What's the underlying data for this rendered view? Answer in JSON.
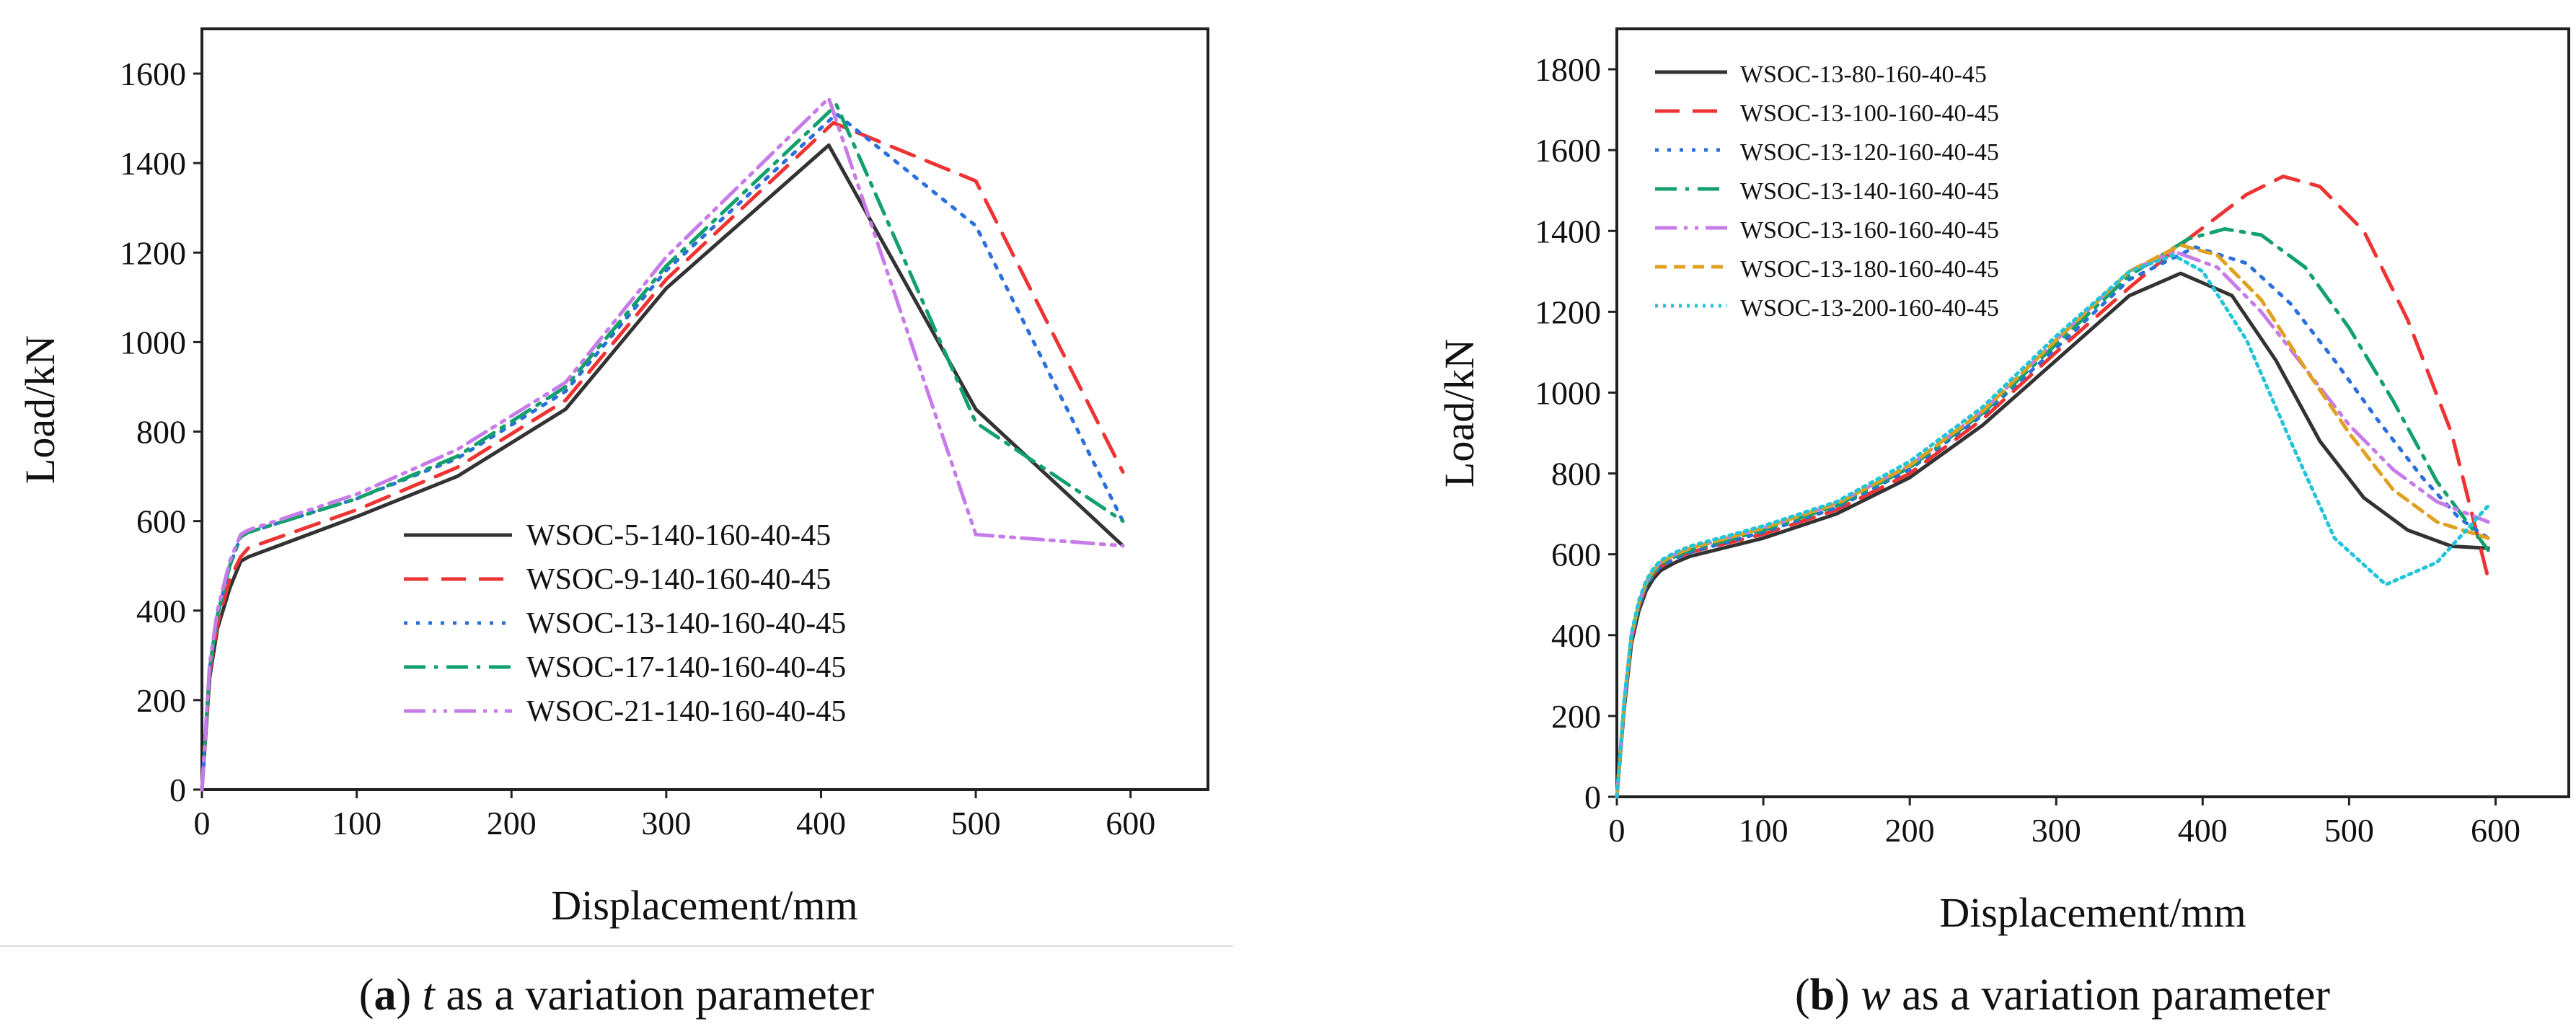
{
  "captions": {
    "a": {
      "open": "(",
      "letter": "a",
      "close": ")",
      "var": "t",
      "rest": " as a variation parameter"
    },
    "b": {
      "open": "(",
      "letter": "b",
      "close": ")",
      "var": "w",
      "rest": " as a variation parameter"
    }
  },
  "chart_data": [
    {
      "id": "a",
      "type": "line",
      "title": "",
      "xlabel": "Displacement/mm",
      "ylabel": "Load/kN",
      "xlim": [
        0,
        650
      ],
      "ylim": [
        0,
        1700
      ],
      "xticks": [
        0,
        100,
        200,
        300,
        400,
        500,
        600
      ],
      "yticks": [
        0,
        200,
        400,
        600,
        800,
        1000,
        1200,
        1400,
        1600
      ],
      "grid": false,
      "legend_position": "bottom-center",
      "series": [
        {
          "name": "WSOC-5-140-160-40-45",
          "color": "#333333",
          "dash": "solid",
          "x": [
            0,
            5,
            10,
            18,
            25,
            30,
            100,
            165,
            235,
            300,
            405,
            500,
            595
          ],
          "y": [
            0,
            250,
            360,
            450,
            510,
            520,
            610,
            700,
            850,
            1120,
            1440,
            850,
            545
          ]
        },
        {
          "name": "WSOC-9-140-160-40-45",
          "color": "#ee3333",
          "dash": "dashed",
          "x": [
            0,
            5,
            10,
            18,
            25,
            30,
            100,
            165,
            235,
            300,
            408,
            500,
            595
          ],
          "y": [
            0,
            260,
            370,
            470,
            520,
            540,
            625,
            720,
            870,
            1140,
            1490,
            1360,
            710
          ]
        },
        {
          "name": "WSOC-13-140-160-40-45",
          "color": "#2a6fdb",
          "dash": "dotted",
          "x": [
            0,
            5,
            10,
            18,
            25,
            30,
            100,
            165,
            235,
            300,
            410,
            500,
            595
          ],
          "y": [
            0,
            270,
            390,
            500,
            565,
            575,
            650,
            740,
            890,
            1160,
            1510,
            1260,
            600
          ]
        },
        {
          "name": "WSOC-17-140-160-40-45",
          "color": "#12a06c",
          "dash": "dashdot",
          "x": [
            0,
            5,
            10,
            18,
            25,
            30,
            100,
            165,
            235,
            300,
            410,
            500,
            595
          ],
          "y": [
            0,
            270,
            390,
            500,
            565,
            575,
            650,
            745,
            900,
            1170,
            1530,
            820,
            600
          ]
        },
        {
          "name": "WSOC-21-140-160-40-45",
          "color": "#c77be8",
          "dash": "dashdotdot",
          "x": [
            0,
            5,
            10,
            18,
            25,
            30,
            100,
            165,
            235,
            300,
            405,
            500,
            595
          ],
          "y": [
            0,
            280,
            400,
            510,
            570,
            580,
            660,
            760,
            910,
            1190,
            1545,
            570,
            545
          ]
        }
      ]
    },
    {
      "id": "b",
      "type": "line",
      "title": "",
      "xlabel": "Displacement/mm",
      "ylabel": "Load/kN",
      "xlim": [
        0,
        650
      ],
      "ylim": [
        0,
        1900
      ],
      "xticks": [
        0,
        100,
        200,
        300,
        400,
        500,
        600
      ],
      "yticks": [
        0,
        200,
        400,
        600,
        800,
        1000,
        1200,
        1400,
        1600,
        1800
      ],
      "grid": false,
      "legend_position": "top-left",
      "series": [
        {
          "name": "WSOC-13-80-160-40-45",
          "color": "#333333",
          "dash": "solid",
          "x": [
            0,
            5,
            10,
            15,
            20,
            25,
            30,
            40,
            50,
            100,
            150,
            200,
            250,
            300,
            350,
            385,
            420,
            450,
            480,
            510,
            540,
            570,
            595
          ],
          "y": [
            0,
            220,
            380,
            460,
            510,
            540,
            560,
            580,
            595,
            640,
            700,
            790,
            920,
            1080,
            1240,
            1295,
            1240,
            1080,
            880,
            740,
            660,
            620,
            615
          ]
        },
        {
          "name": "WSOC-13-100-160-40-45",
          "color": "#ee3333",
          "dash": "dashed",
          "x": [
            0,
            5,
            10,
            15,
            20,
            25,
            30,
            40,
            50,
            100,
            150,
            200,
            250,
            300,
            350,
            390,
            430,
            455,
            480,
            510,
            540,
            570,
            595
          ],
          "y": [
            0,
            230,
            390,
            470,
            520,
            550,
            570,
            590,
            605,
            650,
            710,
            800,
            935,
            1100,
            1260,
            1380,
            1490,
            1535,
            1510,
            1400,
            1180,
            900,
            540
          ]
        },
        {
          "name": "WSOC-13-120-160-40-45",
          "color": "#2a6fdb",
          "dash": "dotted",
          "x": [
            0,
            5,
            10,
            15,
            20,
            25,
            30,
            40,
            50,
            100,
            150,
            200,
            250,
            300,
            350,
            395,
            430,
            460,
            490,
            520,
            550,
            575,
            595
          ],
          "y": [
            0,
            230,
            390,
            470,
            520,
            550,
            570,
            590,
            605,
            655,
            715,
            810,
            945,
            1110,
            1280,
            1360,
            1320,
            1220,
            1080,
            930,
            790,
            690,
            640
          ]
        },
        {
          "name": "WSOC-13-140-160-40-45",
          "color": "#12a06c",
          "dash": "dashdot",
          "x": [
            0,
            5,
            10,
            15,
            20,
            25,
            30,
            40,
            50,
            100,
            150,
            200,
            250,
            300,
            350,
            390,
            415,
            440,
            470,
            500,
            530,
            560,
            595
          ],
          "y": [
            0,
            230,
            395,
            475,
            525,
            555,
            575,
            595,
            610,
            660,
            720,
            815,
            950,
            1120,
            1290,
            1380,
            1405,
            1390,
            1310,
            1160,
            980,
            780,
            610
          ]
        },
        {
          "name": "WSOC-13-160-160-40-45",
          "color": "#c77be8",
          "dash": "dashdotdot",
          "x": [
            0,
            5,
            10,
            15,
            20,
            25,
            30,
            40,
            50,
            100,
            150,
            200,
            250,
            300,
            350,
            380,
            410,
            440,
            470,
            500,
            530,
            560,
            595
          ],
          "y": [
            0,
            235,
            400,
            480,
            530,
            560,
            580,
            600,
            615,
            665,
            725,
            820,
            955,
            1130,
            1300,
            1350,
            1310,
            1200,
            1060,
            920,
            810,
            730,
            680
          ]
        },
        {
          "name": "WSOC-13-180-160-40-45",
          "color": "#e0a020",
          "dash": "shortdash",
          "x": [
            0,
            5,
            10,
            15,
            20,
            25,
            30,
            40,
            50,
            100,
            150,
            200,
            250,
            300,
            350,
            385,
            410,
            440,
            470,
            500,
            530,
            560,
            595
          ],
          "y": [
            0,
            235,
            400,
            480,
            530,
            560,
            580,
            600,
            615,
            665,
            725,
            820,
            955,
            1130,
            1300,
            1365,
            1340,
            1230,
            1060,
            900,
            760,
            680,
            640
          ]
        },
        {
          "name": "WSOC-13-200-160-40-45",
          "color": "#22c5d8",
          "dash": "densedot",
          "x": [
            0,
            5,
            10,
            15,
            20,
            25,
            30,
            40,
            50,
            100,
            150,
            200,
            250,
            300,
            350,
            380,
            400,
            430,
            460,
            490,
            525,
            560,
            595
          ],
          "y": [
            0,
            240,
            405,
            485,
            535,
            565,
            585,
            605,
            620,
            670,
            730,
            830,
            965,
            1140,
            1300,
            1340,
            1300,
            1130,
            880,
            640,
            525,
            580,
            720
          ]
        }
      ]
    }
  ]
}
